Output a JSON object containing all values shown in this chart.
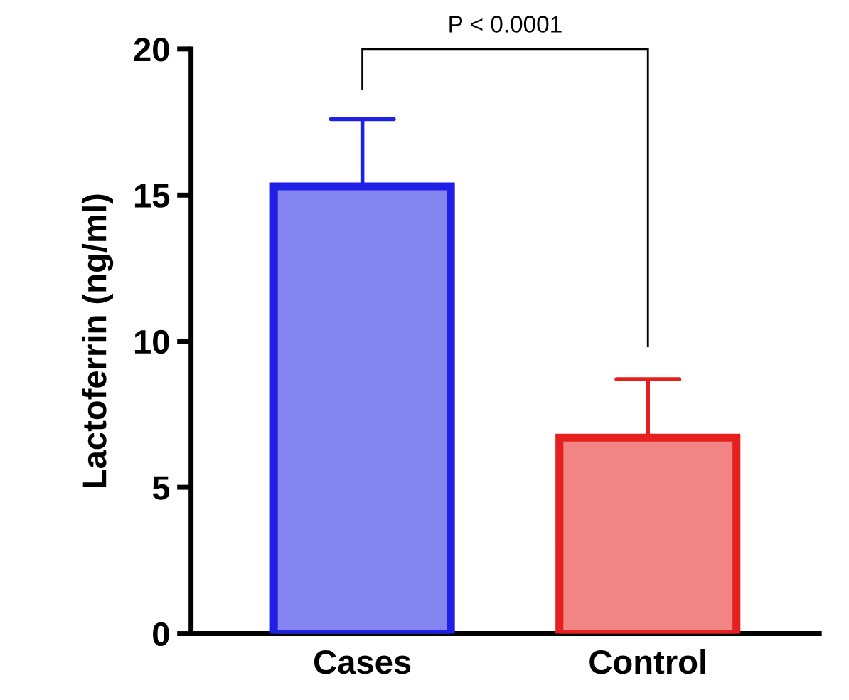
{
  "chart_data": {
    "type": "bar",
    "ylabel": "Lactoferrin (ng/ml)",
    "categories": [
      "Cases",
      "Control"
    ],
    "values": [
      15.3,
      6.7
    ],
    "errors": [
      2.3,
      2.0
    ],
    "colors": [
      "#1f1fe6",
      "#e61f1f"
    ],
    "ylim": [
      0,
      20
    ],
    "yticks": [
      0,
      5,
      10,
      15,
      20
    ],
    "grid": false,
    "legend": false,
    "annotations": [
      "P < 0.0001"
    ]
  }
}
